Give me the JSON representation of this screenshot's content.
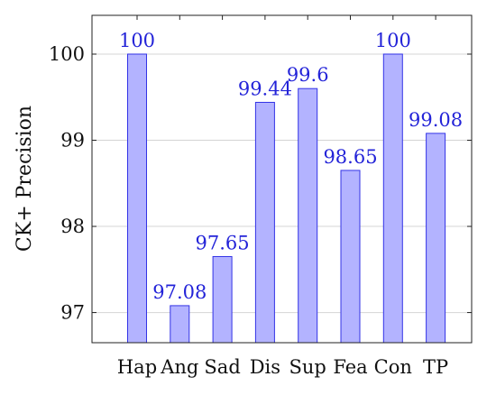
{
  "chart_data": {
    "type": "bar",
    "categories": [
      "Hap",
      "Ang",
      "Sad",
      "Dis",
      "Sup",
      "Fea",
      "Con",
      "TP"
    ],
    "values": [
      100,
      97.08,
      97.65,
      99.44,
      99.6,
      98.65,
      100,
      99.08
    ],
    "data_labels": [
      "100",
      "97.08",
      "97.65",
      "99.44",
      "99.6",
      "98.65",
      "100",
      "99.08"
    ],
    "ylabel": "CK+ Precision",
    "xlabel": "",
    "ylim": [
      96.65,
      100.45
    ],
    "yticks": [
      97,
      98,
      99,
      100
    ],
    "ytick_labels": [
      "97",
      "98",
      "99",
      "100"
    ],
    "grid": true,
    "colors": {
      "bar_fill": "#b3b3ff",
      "bar_stroke": "#3333e6",
      "label": "#2323d8"
    }
  }
}
